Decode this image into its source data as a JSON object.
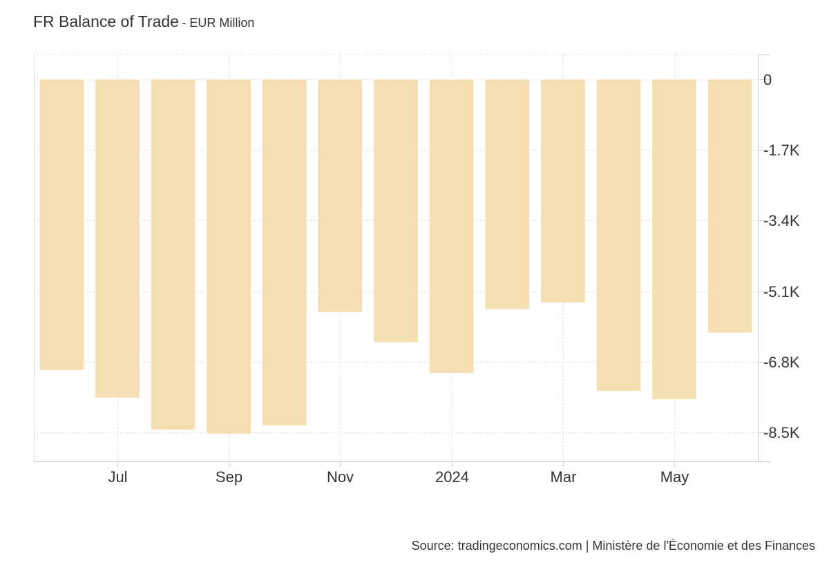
{
  "header": {
    "title": "FR Balance of Trade",
    "subtitle": "- EUR Million"
  },
  "footer": {
    "source": "Source: tradingeconomics.com | Ministère de l'Économie et des Finances"
  },
  "colors": {
    "bar": "#f4deb2",
    "grid": "#d9d9d9",
    "axis": "#cccccc",
    "text": "#333333"
  },
  "chart_data": {
    "type": "bar",
    "title": "FR Balance of Trade",
    "subtitle": "- EUR Million",
    "xlabel": "",
    "ylabel": "",
    "categories": [
      "2023-06",
      "2023-07",
      "2023-08",
      "2023-09",
      "2023-10",
      "2023-11",
      "2023-12",
      "2024-01",
      "2024-02",
      "2024-03",
      "2024-04",
      "2024-05",
      "2024-06"
    ],
    "values": [
      -7000,
      -7660,
      -8430,
      -8530,
      -8330,
      -5600,
      -6330,
      -7070,
      -5530,
      -5370,
      -7500,
      -7700,
      -6100
    ],
    "ylim": [
      -9200,
      600
    ],
    "yticks": [
      0,
      -1700,
      -3400,
      -5100,
      -6800,
      -8500
    ],
    "ytick_labels": [
      "0",
      "-1.7K",
      "-3.4K",
      "-5.1K",
      "-6.8K",
      "-8.5K"
    ],
    "xtick_labels": [
      {
        "category": "2023-07",
        "label": "Jul"
      },
      {
        "category": "2023-09",
        "label": "Sep"
      },
      {
        "category": "2023-11",
        "label": "Nov"
      },
      {
        "category": "2024-01",
        "label": "2024"
      },
      {
        "category": "2024-03",
        "label": "Mar"
      },
      {
        "category": "2024-05",
        "label": "May"
      }
    ],
    "grid": true,
    "legend": "none",
    "axis_position": "right"
  }
}
